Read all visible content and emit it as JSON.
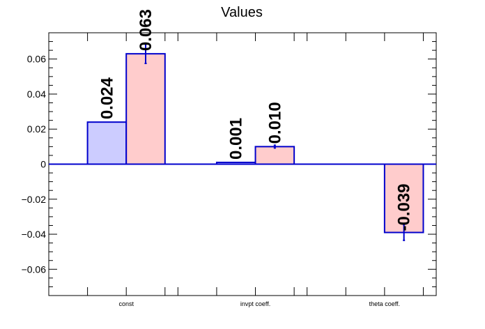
{
  "chart_data": {
    "type": "bar",
    "title": "Values",
    "xlabel": "",
    "ylabel": "",
    "categories": [
      "const",
      "invpt coeff.",
      "theta coeff."
    ],
    "ylim": [
      -0.075,
      0.075
    ],
    "yticks": [
      -0.06,
      -0.04,
      -0.02,
      0,
      0.02,
      0.04,
      0.06
    ],
    "ytick_labels": [
      "−0.06",
      "−0.04",
      "−0.02",
      "0",
      "0.02",
      "0.04",
      "0.06"
    ],
    "series": [
      {
        "values": [
          0.024,
          0.001,
          null
        ],
        "errors": [
          null,
          null,
          null
        ],
        "labels": [
          "0.024",
          "0.001",
          ""
        ],
        "fill": "#ccccff",
        "stroke": "#0000cc"
      },
      {
        "values": [
          0.063,
          0.01,
          -0.039
        ],
        "errors": [
          0.0055,
          0.0008,
          0.0045
        ],
        "labels": [
          "0.063",
          "0.010",
          "-0.039"
        ],
        "fill": "#ffcccc",
        "stroke": "#0000cc"
      }
    ],
    "grid": false,
    "legend": "none"
  }
}
